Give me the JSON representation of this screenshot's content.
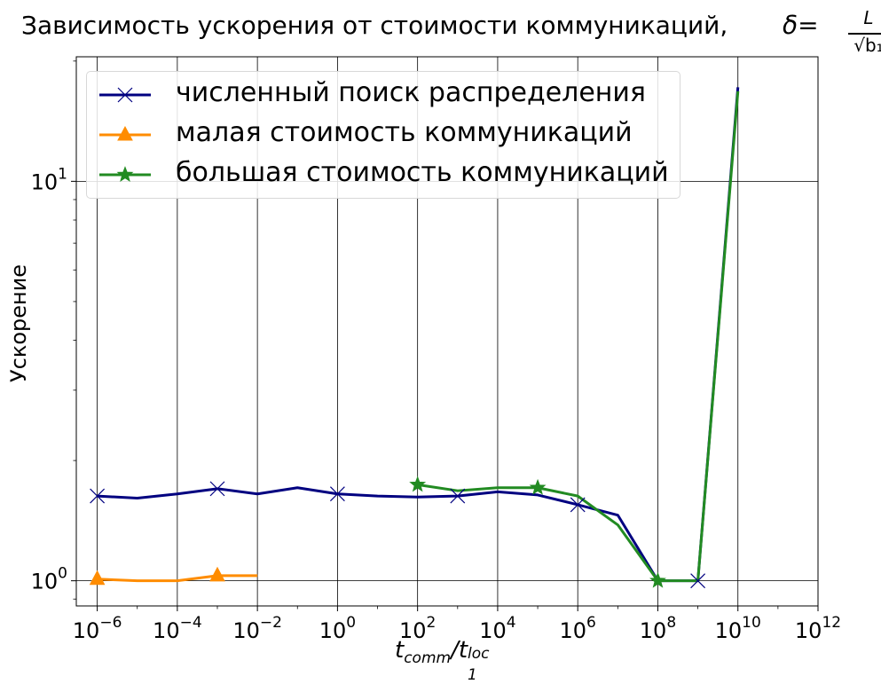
{
  "chart_data": {
    "type": "line",
    "title": "Зависимость ускорения от стоимости коммуникаций,",
    "title_math": {
      "symbol": "δ",
      "relation": "=",
      "numerator": "L",
      "denominator": "√b₁"
    },
    "xlabel": {
      "base": "t",
      "sub": "comm",
      "sep": "/t",
      "sub2": "1",
      "sup2": "loc"
    },
    "ylabel": "Ускорение",
    "xscale": "log",
    "yscale": "log",
    "xlim": [
      3e-07,
      1000000000000.0
    ],
    "ylim": [
      0.865,
      20.5
    ],
    "grid": "major",
    "legend_position": "top-left",
    "x_ticks": [
      {
        "value": 1e-06,
        "base": "10",
        "exp": "−6"
      },
      {
        "value": 0.0001,
        "base": "10",
        "exp": "−4"
      },
      {
        "value": 0.01,
        "base": "10",
        "exp": "−2"
      },
      {
        "value": 1,
        "base": "10",
        "exp": "0"
      },
      {
        "value": 100.0,
        "base": "10",
        "exp": "2"
      },
      {
        "value": 10000.0,
        "base": "10",
        "exp": "4"
      },
      {
        "value": 1000000.0,
        "base": "10",
        "exp": "6"
      },
      {
        "value": 100000000.0,
        "base": "10",
        "exp": "8"
      },
      {
        "value": 10000000000.0,
        "base": "10",
        "exp": "10"
      },
      {
        "value": 1000000000000.0,
        "base": "10",
        "exp": "12"
      }
    ],
    "y_ticks": [
      {
        "value": 1,
        "base": "10",
        "exp": "0"
      },
      {
        "value": 10,
        "base": "10",
        "exp": "1"
      }
    ],
    "series": [
      {
        "name": "численный поиск распределения",
        "color": "#000080",
        "marker": "x",
        "x": [
          1e-06,
          1e-05,
          0.0001,
          0.001,
          0.01,
          0.1,
          1,
          10.0,
          100.0,
          1000.0,
          10000.0,
          100000.0,
          1000000.0,
          10000000.0,
          100000000.0,
          1000000000.0,
          10000000000.0
        ],
        "y": [
          1.63,
          1.61,
          1.65,
          1.7,
          1.65,
          1.71,
          1.65,
          1.63,
          1.62,
          1.63,
          1.67,
          1.64,
          1.55,
          1.46,
          1.0,
          1.0,
          17.2
        ],
        "marker_every": 3
      },
      {
        "name": "малая стоимость коммуникаций",
        "color": "#ff8c00",
        "marker": "^",
        "x": [
          1e-06,
          1e-05,
          0.0001,
          0.001,
          0.01
        ],
        "y": [
          1.01,
          1.0,
          1.0,
          1.03,
          1.03
        ],
        "marker_every": 3
      },
      {
        "name": "большая стоимость коммуникаций",
        "color": "#228b22",
        "marker": "*",
        "x": [
          100.0,
          1000.0,
          10000.0,
          100000.0,
          1000000.0,
          10000000.0,
          100000000.0,
          1000000000.0,
          10000000000.0
        ],
        "y": [
          1.74,
          1.68,
          1.71,
          1.71,
          1.63,
          1.38,
          1.0,
          1.0,
          16.8
        ],
        "marker_every": 3
      }
    ]
  }
}
